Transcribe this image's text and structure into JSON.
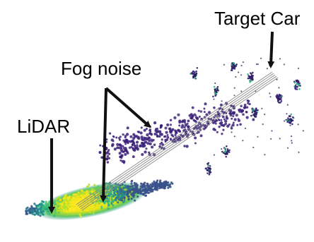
{
  "labels": {
    "target_car": "Target Car",
    "fog_noise": "Fog noise",
    "lidar": "LiDAR"
  },
  "colors": {
    "background": "#ffffff",
    "text": "#000000",
    "arrow": "#111111",
    "beam": "#8a8a8a",
    "fog_points": "#3b1f7a",
    "near_dense": "#f5e51a",
    "near_mid": "#5ec962",
    "near_far": "#21918c",
    "far_structure": "#2a1b5e"
  },
  "icons": [
    "arrow-down-icon",
    "arrow-diagonal-icon"
  ]
}
